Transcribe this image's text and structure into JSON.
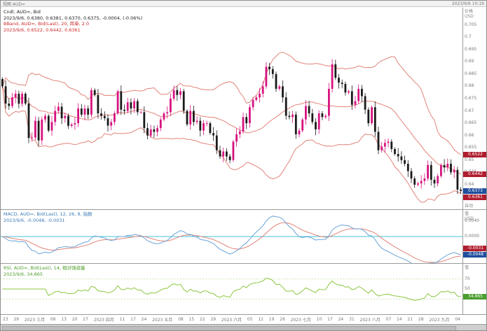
{
  "window": {
    "titlebar_left": "视图 AUD=",
    "titlebar_right": "2023/9/6 10:19"
  },
  "colors": {
    "up": "#d6147f",
    "down": "#1a1a1a",
    "band": "#e2837a",
    "macd": "#69a3d9",
    "signal": "#e2837a",
    "zero": "#45c3d8",
    "rsi": "#8dc63f",
    "rsi_hline": "#cde8b5"
  },
  "main_panel": {
    "legend_line1": "Cndl, AUD=, Bid",
    "legend_line2": "2023/9/6, 0.6380, 0.6381, 0.6370, 0.6375, -0.0004, (-0.06%)",
    "legend_line3": "BBand, AUD=, Bid(Last), 20, 简单, 2.0",
    "legend_line4": "2023/9/6, 0.6522, 0.6442, 0.6361",
    "axis_header_1": "价格",
    "axis_header_2": "USD",
    "axis_footer": "自动",
    "y_ticks": [
      "0.705",
      "0.7",
      "0.695",
      "0.69",
      "0.685",
      "0.68",
      "0.675",
      "0.67",
      "0.665",
      "0.66",
      "0.655",
      "0.65",
      "0.645",
      "0.64",
      "0.635"
    ],
    "badges": [
      {
        "label": "0.6522",
        "value": 0.6522,
        "color": "red"
      },
      {
        "label": "0.6442",
        "value": 0.6442,
        "color": "red"
      },
      {
        "label": "0.6373",
        "value": 0.6373,
        "color": "blue"
      },
      {
        "label": "0.6361",
        "value": 0.6361,
        "color": "red"
      }
    ]
  },
  "macd_panel": {
    "legend_line1": "MACD, AUD=, Bid(Last), 12, 26, 9, 指数",
    "legend_line2": "2023/9/6, -0.0048, -0.0031",
    "axis_header_1": "值",
    "axis_header_2": "USD",
    "y_ticks": [
      "0.0040",
      "0.0000",
      "-0.0040"
    ],
    "badges": [
      {
        "label": "-0.0031",
        "value": -0.0031,
        "color": "red"
      },
      {
        "label": "-0.0048",
        "value": -0.0048,
        "color": "blue"
      }
    ]
  },
  "rsi_panel": {
    "legend_line1": "RSI, AUD=, Bid(Last), 14, 相对强弱量",
    "legend_line2": "2023/9/6, 34.865",
    "axis_header_1": "值",
    "y_ticks": [
      "70",
      "50",
      "30"
    ],
    "badges": [
      {
        "label": "34.865",
        "value": 34.865,
        "color": "green"
      }
    ]
  },
  "time_axis": {
    "labels": [
      "23",
      "29",
      "2023 三月",
      "06",
      "13",
      "20",
      "27",
      "2023 四月",
      "11",
      "17",
      "24",
      "2023 五月",
      "08",
      "15",
      "22",
      "29",
      "2023 六月",
      "05",
      "12",
      "19",
      "26",
      "2023 七月",
      "10",
      "17",
      "24",
      "31",
      "2023 八月",
      "07",
      "14",
      "21",
      "28",
      "2023 九月",
      "04"
    ]
  },
  "chart_data": [
    {
      "name": "price",
      "type": "candlestick",
      "symbol": "AUD=",
      "field": "Bid",
      "interval": "daily",
      "x_range": [
        "2023-02-23",
        "2023-09-06"
      ],
      "ylim": [
        0.63,
        0.712
      ],
      "last_bar": {
        "date": "2023/9/6",
        "open": 0.638,
        "high": 0.6381,
        "low": 0.637,
        "close": 0.6375,
        "change": -0.0004,
        "change_pct": "-0.06%"
      },
      "bollinger": {
        "period": 20,
        "method": "简单",
        "width": 2.0,
        "upper": 0.6522,
        "middle": 0.6442,
        "lower": 0.6361
      },
      "open_first": 0.683,
      "closes": [
        0.68,
        0.673,
        0.672,
        0.6755,
        0.677,
        0.6729,
        0.677,
        0.673,
        0.659,
        0.6592,
        0.666,
        0.658,
        0.6665,
        0.668,
        0.662,
        0.6655,
        0.67,
        0.6717,
        0.667,
        0.668,
        0.6639,
        0.6645,
        0.665,
        0.671,
        0.6685,
        0.671,
        0.6685,
        0.6785,
        0.6765,
        0.669,
        0.668,
        0.667,
        0.664,
        0.6655,
        0.669,
        0.678,
        0.6705,
        0.67,
        0.6735,
        0.671,
        0.674,
        0.6695,
        0.6695,
        0.663,
        0.66,
        0.6625,
        0.6615,
        0.663,
        0.6665,
        0.669,
        0.6695,
        0.675,
        0.6785,
        0.6765,
        0.678,
        0.67,
        0.6645,
        0.67,
        0.6655,
        0.666,
        0.662,
        0.665,
        0.665,
        0.661,
        0.66,
        0.654,
        0.6515,
        0.6535,
        0.6515,
        0.65,
        0.6575,
        0.6605,
        0.6617,
        0.6675,
        0.665,
        0.6715,
        0.6745,
        0.6755,
        0.677,
        0.68,
        0.688,
        0.687,
        0.685,
        0.679,
        0.68,
        0.6755,
        0.668,
        0.6675,
        0.6685,
        0.6605,
        0.662,
        0.6665,
        0.672,
        0.669,
        0.6655,
        0.6625,
        0.669,
        0.6675,
        0.668,
        0.679,
        0.689,
        0.6835,
        0.6815,
        0.681,
        0.6775,
        0.678,
        0.6725,
        0.674,
        0.679,
        0.676,
        0.6705,
        0.665,
        0.6715,
        0.6615,
        0.654,
        0.6555,
        0.657,
        0.6575,
        0.6545,
        0.6525,
        0.6515,
        0.65,
        0.6485,
        0.6455,
        0.6425,
        0.64,
        0.6405,
        0.6415,
        0.6425,
        0.648,
        0.642,
        0.6405,
        0.6435,
        0.648,
        0.647,
        0.6485,
        0.645,
        0.646,
        0.638,
        0.6375
      ]
    },
    {
      "name": "macd",
      "type": "line",
      "fast": 12,
      "slow": 26,
      "signal": 9,
      "method_label": "指数",
      "ylim": [
        -0.007,
        0.007
      ],
      "zero_line": true,
      "last_macd": -0.0048,
      "last_signal": -0.0031
    },
    {
      "name": "rsi",
      "type": "line",
      "period": 14,
      "label": "相对强弱量",
      "ylim": [
        0,
        100
      ],
      "hlines": [
        70,
        30
      ],
      "last": 34.865
    }
  ]
}
